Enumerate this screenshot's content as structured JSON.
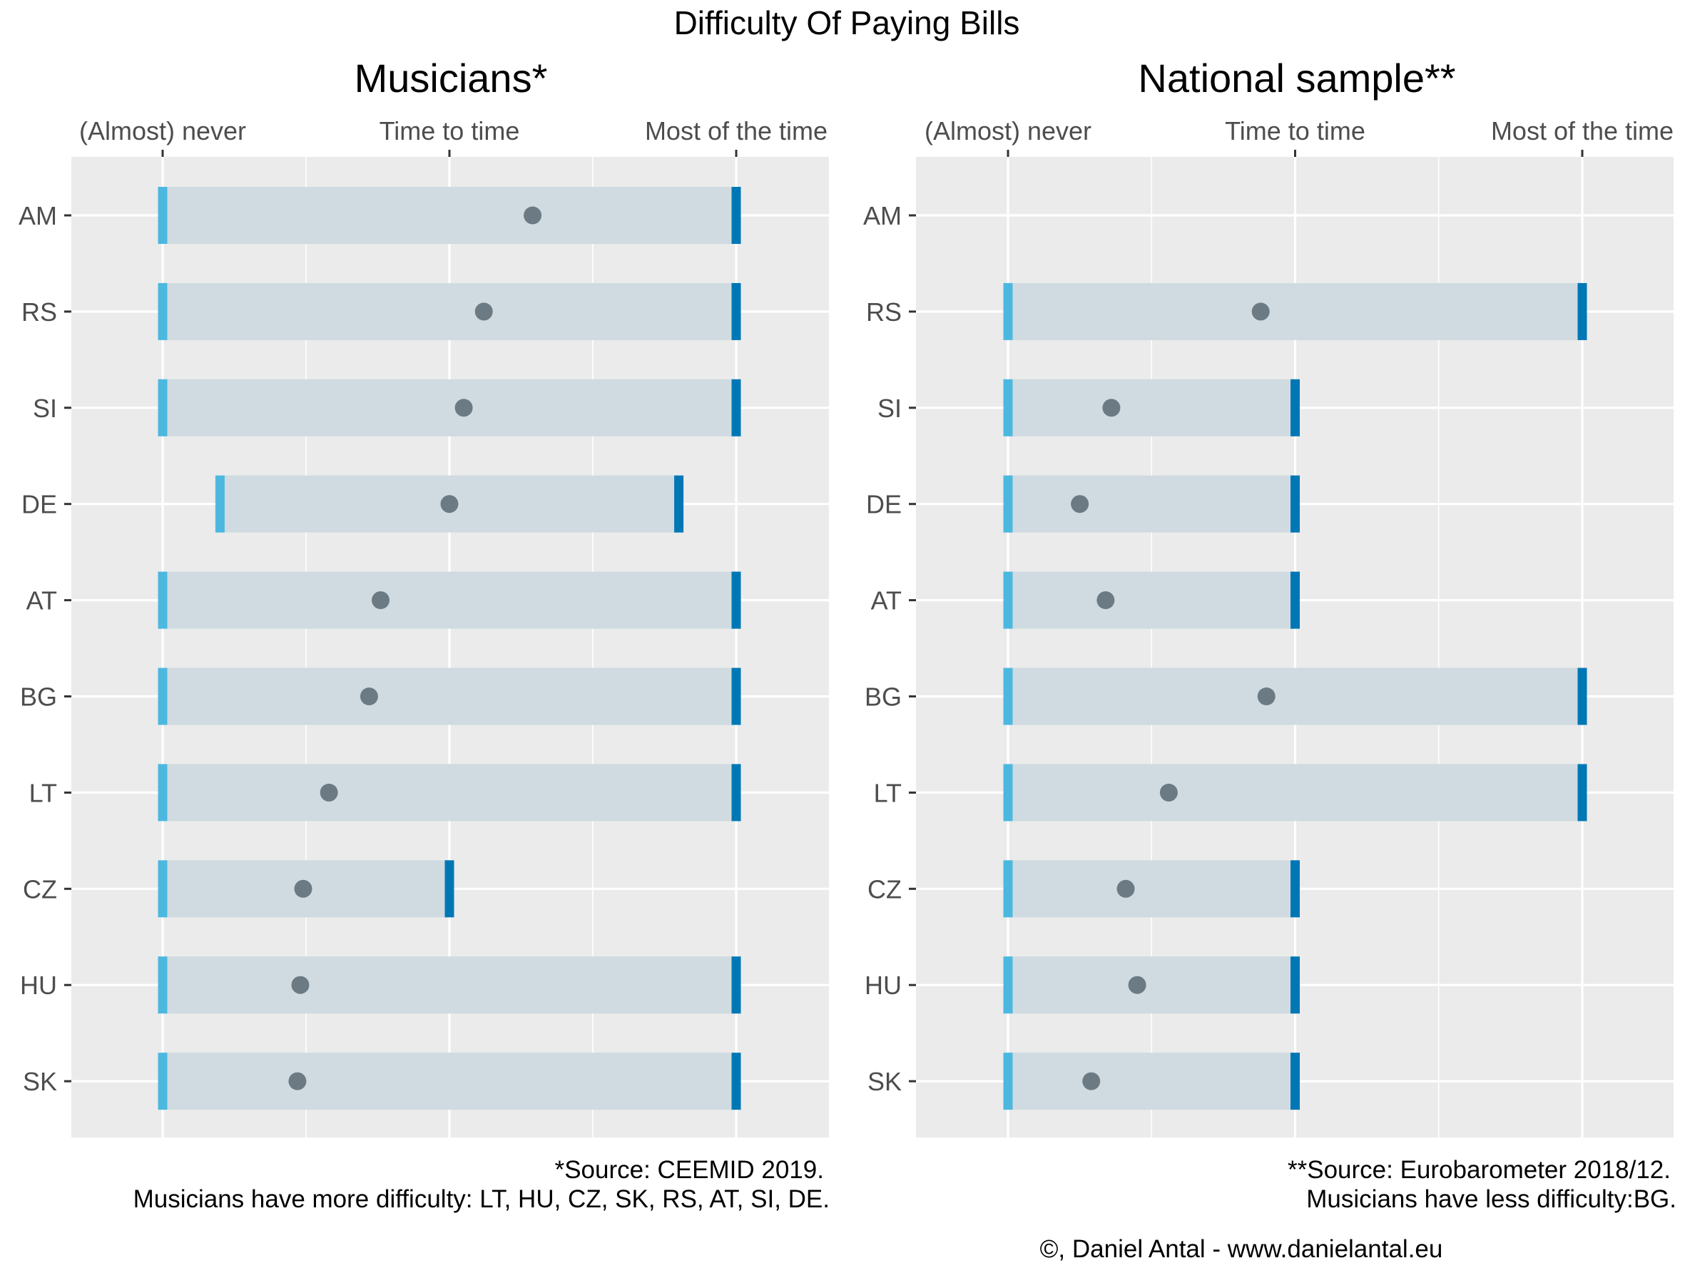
{
  "colors": {
    "panel_bg": "#ebebeb",
    "gridline": "#ffffff",
    "range_band": "#cfdbe0",
    "min_marker": "#4cb8e0",
    "max_marker": "#0077b5",
    "point": "#6c7a84",
    "tick": "#333333"
  },
  "title": "Difficulty Of Paying Bills",
  "copyright": "©, Daniel Antal - www.danielantal.eu",
  "chart_data": [
    {
      "type": "range-dot",
      "title": "Musicians*",
      "x_scale": {
        "min": 1,
        "max": 3,
        "tick_labels": [
          "(Almost) never",
          "Time to time",
          "Most of the time"
        ]
      },
      "categories": [
        "AM",
        "RS",
        "SI",
        "DE",
        "AT",
        "BG",
        "LT",
        "CZ",
        "HU",
        "SK"
      ],
      "rows": [
        {
          "label": "AM",
          "min": 1,
          "max": 3,
          "mean": 2.29
        },
        {
          "label": "RS",
          "min": 1,
          "max": 3,
          "mean": 2.12
        },
        {
          "label": "SI",
          "min": 1,
          "max": 3,
          "mean": 2.05
        },
        {
          "label": "DE",
          "min": 1.2,
          "max": 2.8,
          "mean": 2.0
        },
        {
          "label": "AT",
          "min": 1,
          "max": 3,
          "mean": 1.76
        },
        {
          "label": "BG",
          "min": 1,
          "max": 3,
          "mean": 1.72
        },
        {
          "label": "LT",
          "min": 1,
          "max": 3,
          "mean": 1.58
        },
        {
          "label": "CZ",
          "min": 1,
          "max": 2,
          "mean": 1.49
        },
        {
          "label": "HU",
          "min": 1,
          "max": 3,
          "mean": 1.48
        },
        {
          "label": "SK",
          "min": 1,
          "max": 3,
          "mean": 1.47
        }
      ],
      "caption": [
        "*Source: CEEMID 2019.",
        "Musicians have more difficulty: LT, HU, CZ, SK, RS, AT, SI, DE."
      ]
    },
    {
      "type": "range-dot",
      "title": "National sample**",
      "x_scale": {
        "min": 1,
        "max": 3,
        "tick_labels": [
          "(Almost) never",
          "Time to time",
          "Most of the time"
        ]
      },
      "categories": [
        "AM",
        "RS",
        "SI",
        "DE",
        "AT",
        "BG",
        "LT",
        "CZ",
        "HU",
        "SK"
      ],
      "rows": [
        {
          "label": "AM",
          "min": null,
          "max": null,
          "mean": null
        },
        {
          "label": "RS",
          "min": 1,
          "max": 3,
          "mean": 1.88
        },
        {
          "label": "SI",
          "min": 1,
          "max": 2,
          "mean": 1.36
        },
        {
          "label": "DE",
          "min": 1,
          "max": 2,
          "mean": 1.25
        },
        {
          "label": "AT",
          "min": 1,
          "max": 2,
          "mean": 1.34
        },
        {
          "label": "BG",
          "min": 1,
          "max": 3,
          "mean": 1.9
        },
        {
          "label": "LT",
          "min": 1,
          "max": 3,
          "mean": 1.56
        },
        {
          "label": "CZ",
          "min": 1,
          "max": 2,
          "mean": 1.41
        },
        {
          "label": "HU",
          "min": 1,
          "max": 2,
          "mean": 1.45
        },
        {
          "label": "SK",
          "min": 1,
          "max": 2,
          "mean": 1.29
        }
      ],
      "caption": [
        "**Source: Eurobarometer 2018/12.",
        "Musicians have less difficulty:BG."
      ]
    }
  ]
}
